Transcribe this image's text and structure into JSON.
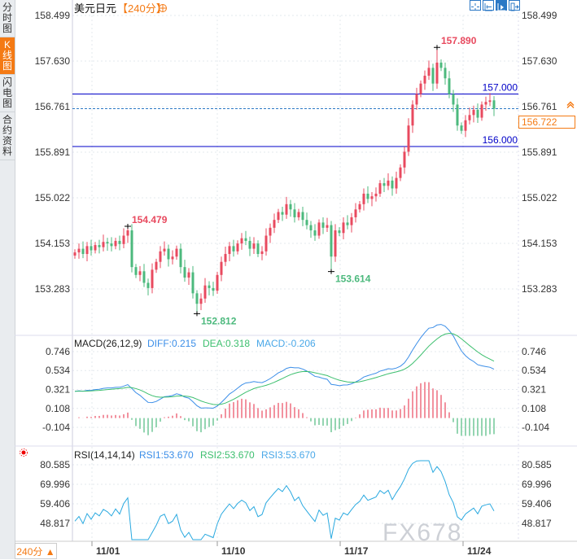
{
  "sidebar": {
    "tabs": [
      {
        "label": "分时图",
        "active": false
      },
      {
        "label": "K线图",
        "active": true
      },
      {
        "label": "闪电图",
        "active": false
      },
      {
        "label": "合约资料",
        "active": false
      }
    ]
  },
  "header": {
    "symbol": "美元日元",
    "period": "【240分】",
    "add_icon": "circle-plus-icon"
  },
  "toolbar": {
    "icons": [
      "crosshair-icon",
      "fit-range-icon",
      "scroll-to-end-icon",
      "exit-icon"
    ]
  },
  "period_button": "240分 ▲",
  "current_price": "156.722",
  "watermark": "FX678",
  "colors": {
    "up": "#e84a5f",
    "down": "#4cb97d",
    "accent": "#f47a14",
    "level_line": "#0000c8",
    "diff": "#3b8ee8",
    "dea": "#3cbf6e",
    "rsi": "#2aa9e0"
  },
  "chart_data": {
    "type": "candlestick",
    "price_axis": {
      "ticks": [
        "158.499",
        "157.630",
        "156.761",
        "155.891",
        "155.022",
        "154.153",
        "153.283"
      ],
      "ylim": [
        152.7,
        158.6
      ]
    },
    "x_ticks": [
      "11/01",
      "11/10",
      "11/17",
      "11/24"
    ],
    "closes": [
      153.98,
      154.05,
      153.95,
      154.1,
      154.02,
      154.12,
      154.08,
      154.18,
      154.15,
      154.1,
      154.2,
      154.14,
      154.3,
      154.4,
      153.7,
      153.55,
      153.62,
      153.4,
      153.3,
      153.65,
      153.8,
      154.0,
      154.05,
      153.85,
      153.9,
      154.05,
      153.7,
      153.5,
      153.6,
      153.2,
      153.0,
      153.1,
      153.35,
      153.3,
      153.25,
      153.55,
      153.8,
      153.95,
      154.1,
      154.0,
      154.15,
      154.25,
      154.2,
      154.05,
      154.15,
      153.95,
      154.0,
      154.3,
      154.45,
      154.6,
      154.75,
      154.7,
      154.9,
      154.8,
      154.65,
      154.75,
      154.6,
      154.5,
      154.4,
      154.3,
      154.55,
      154.45,
      154.5,
      153.9,
      154.4,
      154.35,
      154.55,
      154.5,
      154.65,
      154.8,
      154.9,
      155.1,
      155.0,
      155.05,
      155.1,
      155.3,
      155.25,
      155.35,
      155.2,
      155.4,
      155.6,
      155.9,
      156.4,
      156.8,
      157.0,
      157.2,
      157.35,
      157.5,
      157.2,
      157.6,
      157.5,
      157.3,
      157.0,
      156.8,
      156.4,
      156.3,
      156.5,
      156.6,
      156.7,
      156.55,
      156.8,
      156.85,
      156.88,
      156.72
    ],
    "first_open": 153.92,
    "annotations": [
      {
        "label": "157.890",
        "index": 89,
        "price": 157.89,
        "kind": "high"
      },
      {
        "label": "154.479",
        "index": 13,
        "price": 154.479,
        "kind": "high"
      },
      {
        "label": "153.614",
        "index": 63,
        "price": 153.614,
        "kind": "low"
      },
      {
        "label": "152.812",
        "index": 30,
        "price": 152.812,
        "kind": "low"
      }
    ],
    "level_lines": [
      {
        "label": "157.000",
        "price": 157.0
      },
      {
        "label": "156.000",
        "price": 156.0
      }
    ],
    "last_price": 156.722,
    "macd": {
      "title": "MACD(26,12,9)",
      "diff_label": "DIFF:0.215",
      "dea_label": "DEA:0.318",
      "macd_label": "MACD:-0.206",
      "ticks": [
        "0.746",
        "0.534",
        "0.321",
        "0.108",
        "-0.104"
      ],
      "ylim": [
        -0.2,
        0.8
      ]
    },
    "rsi": {
      "title": "RSI(14,14,14)",
      "rsi1_label": "RSI1:53.670",
      "rsi2_label": "RSI2:53.670",
      "rsi3_label": "RSI3:53.670",
      "ticks": [
        "80.585",
        "69.996",
        "59.406",
        "48.817"
      ],
      "ylim": [
        38,
        83
      ]
    }
  }
}
